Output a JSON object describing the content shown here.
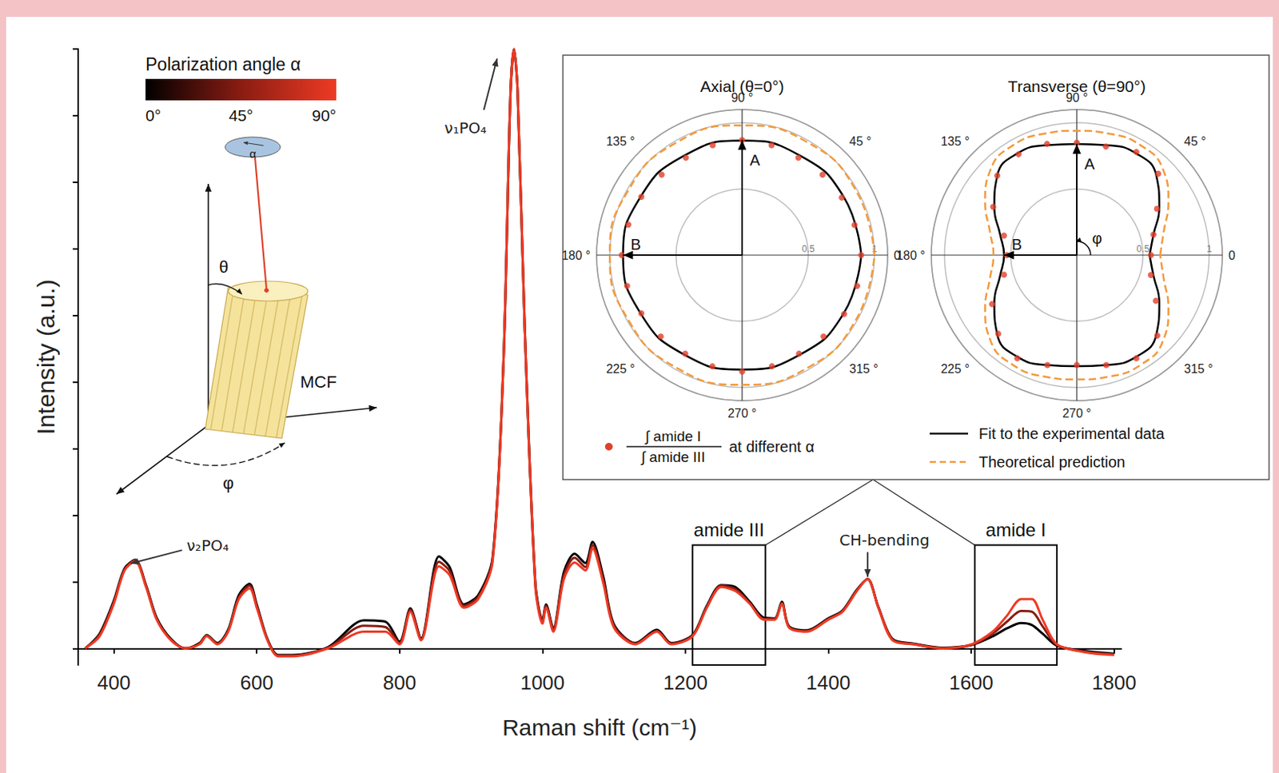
{
  "chart_data": {
    "type": "line",
    "xlabel": "Raman shift (cm⁻¹)",
    "ylabel": "Intensity (a.u.)",
    "xlim": [
      350,
      1810
    ],
    "xticks": [
      400,
      600,
      800,
      1000,
      1200,
      1400,
      1600,
      1800
    ],
    "ylim": [
      -0.25,
      9
    ],
    "yticks": [
      0,
      1,
      2,
      3,
      4,
      5,
      6,
      7,
      8,
      9
    ],
    "tick_labels": "x",
    "grid": false,
    "x": [
      360,
      380,
      400,
      415,
      430,
      445,
      460,
      480,
      500,
      520,
      530,
      545,
      560,
      575,
      590,
      600,
      615,
      630,
      650,
      700,
      750,
      780,
      800,
      815,
      830,
      855,
      870,
      890,
      910,
      930,
      945,
      955,
      960,
      965,
      975,
      990,
      1000,
      1005,
      1015,
      1030,
      1045,
      1060,
      1070,
      1085,
      1100,
      1130,
      1160,
      1180,
      1210,
      1230,
      1250,
      1270,
      1290,
      1310,
      1325,
      1335,
      1345,
      1370,
      1400,
      1420,
      1440,
      1455,
      1470,
      1490,
      1520,
      1560,
      1600,
      1630,
      1650,
      1670,
      1685,
      1700,
      1720,
      1760,
      1800
    ],
    "series": [
      {
        "alpha": 0,
        "values": [
          0,
          0.22,
          0.72,
          1.2,
          1.33,
          0.95,
          0.46,
          0.14,
          0,
          0.08,
          0.2,
          0.08,
          0.28,
          0.8,
          0.97,
          0.66,
          0.14,
          -0.1,
          -0.1,
          0.02,
          0.42,
          0.4,
          0.1,
          0.6,
          0.15,
          1.38,
          1.22,
          0.66,
          0.8,
          1.35,
          4.2,
          8.28,
          9.0,
          8.4,
          4.85,
          0.98,
          0.42,
          0.66,
          0.3,
          1.15,
          1.42,
          1.28,
          1.6,
          1.08,
          0.36,
          0.08,
          0.28,
          0.08,
          0.2,
          0.64,
          0.95,
          0.92,
          0.7,
          0.46,
          0.45,
          0.7,
          0.33,
          0.27,
          0.45,
          0.57,
          0.88,
          1.04,
          0.62,
          0.14,
          0.07,
          0.01,
          0.05,
          0.18,
          0.3,
          0.38,
          0.35,
          0.22,
          0.04,
          -0.04,
          -0.08
        ]
      },
      {
        "alpha": 45,
        "values": [
          0,
          0.2,
          0.7,
          1.18,
          1.32,
          0.94,
          0.44,
          0.13,
          0,
          0.07,
          0.19,
          0.07,
          0.26,
          0.77,
          0.94,
          0.64,
          0.13,
          -0.11,
          -0.11,
          0.01,
          0.34,
          0.32,
          0.08,
          0.58,
          0.14,
          1.3,
          1.16,
          0.64,
          0.77,
          1.32,
          4.2,
          8.28,
          9.0,
          8.4,
          4.85,
          0.95,
          0.4,
          0.64,
          0.28,
          1.1,
          1.36,
          1.22,
          1.55,
          1.03,
          0.34,
          0.07,
          0.26,
          0.07,
          0.19,
          0.62,
          0.94,
          0.89,
          0.68,
          0.44,
          0.44,
          0.68,
          0.32,
          0.26,
          0.44,
          0.56,
          0.87,
          1.04,
          0.62,
          0.13,
          0.06,
          0.0,
          0.05,
          0.22,
          0.4,
          0.56,
          0.55,
          0.33,
          0.05,
          -0.05,
          -0.09
        ]
      },
      {
        "alpha": 90,
        "values": [
          0,
          0.18,
          0.67,
          1.17,
          1.31,
          0.92,
          0.43,
          0.12,
          0,
          0.06,
          0.18,
          0.06,
          0.25,
          0.74,
          0.9,
          0.61,
          0.12,
          -0.12,
          -0.12,
          0,
          0.25,
          0.25,
          0.06,
          0.55,
          0.12,
          1.23,
          1.1,
          0.61,
          0.74,
          1.29,
          4.2,
          8.28,
          9.0,
          8.4,
          4.85,
          0.92,
          0.37,
          0.61,
          0.25,
          1.04,
          1.29,
          1.17,
          1.5,
          0.98,
          0.31,
          0.06,
          0.25,
          0.06,
          0.18,
          0.61,
          0.92,
          0.86,
          0.67,
          0.43,
          0.43,
          0.67,
          0.31,
          0.25,
          0.43,
          0.55,
          0.86,
          1.04,
          0.61,
          0.12,
          0.06,
          0,
          0.06,
          0.25,
          0.49,
          0.74,
          0.74,
          0.43,
          0.06,
          -0.06,
          -0.1
        ]
      }
    ],
    "colorbar": {
      "title": "Polarization angle α",
      "range": [
        0,
        90
      ],
      "ticks": [
        {
          "value": 0,
          "label": "0°"
        },
        {
          "value": 45,
          "label": "45°"
        },
        {
          "value": 90,
          "label": "90°"
        }
      ],
      "colors": [
        "#000000",
        "#8a1c12",
        "#ee3a24"
      ]
    },
    "annotations": [
      {
        "text": "ν₁PO₄",
        "x": 935,
        "y": 8.8
      },
      {
        "text": "ν₂PO₄",
        "x": 429,
        "y": 1.29
      },
      {
        "text": "CH-bending",
        "x": 1455,
        "y": 1.1
      }
    ],
    "regions": [
      {
        "label": "amide III",
        "x": [
          1210,
          1312
        ],
        "y": [
          -0.25,
          1.55
        ]
      },
      {
        "label": "amide I",
        "x": [
          1605,
          1720
        ],
        "y": [
          -0.25,
          1.55
        ]
      }
    ],
    "inset": {
      "type": "polar",
      "rlim": [
        0,
        1.1
      ],
      "rticks": [
        0.5,
        1
      ],
      "angle_ticks": [
        {
          "value": 0,
          "label": "0"
        },
        {
          "value": 45,
          "label": "45 °"
        },
        {
          "value": 90,
          "label": "90 °"
        },
        {
          "value": 135,
          "label": "135 °"
        },
        {
          "value": 180,
          "label": "180 °"
        },
        {
          "value": 225,
          "label": "225 °"
        },
        {
          "value": 270,
          "label": "270 °"
        },
        {
          "value": 315,
          "label": "315 °"
        }
      ],
      "series": [
        {
          "type": "scatter",
          "marker": "circle",
          "color": "#e0402a",
          "name": {
            "numerator": "∫ amide I",
            "denominator": "∫ amide III",
            "text": "at different α"
          }
        },
        {
          "type": "line",
          "line_style": "solid",
          "color": "#000000",
          "name": "Fit to the experimental data"
        },
        {
          "type": "line",
          "line_style": "dashed",
          "color": "#f39a3c",
          "name": "Theoretical prediction"
        }
      ],
      "panels": [
        {
          "title": "Axial (θ=0°)",
          "data": [
            {
              "angle": [
                0,
                15,
                30,
                45,
                60,
                75,
                90,
                105,
                120,
                135,
                150,
                165,
                180,
                195,
                210,
                225,
                240,
                255,
                270,
                285,
                300,
                315,
                330,
                345
              ],
              "r": [
                0.9,
                0.88,
                0.87,
                0.86,
                0.85,
                0.86,
                0.87,
                0.86,
                0.85,
                0.86,
                0.88,
                0.89,
                0.91,
                0.9,
                0.88,
                0.87,
                0.86,
                0.87,
                0.88,
                0.87,
                0.86,
                0.87,
                0.89,
                0.9
              ]
            },
            {
              "angle": [
                0,
                30,
                60,
                90,
                120,
                150,
                180,
                210,
                240,
                270,
                300,
                330,
                360
              ],
              "r": [
                0.9,
                0.885,
                0.87,
                0.865,
                0.87,
                0.885,
                0.9,
                0.885,
                0.87,
                0.865,
                0.87,
                0.885,
                0.9
              ]
            },
            {
              "angle": [
                0,
                30,
                60,
                90,
                120,
                150,
                180,
                210,
                240,
                270,
                300,
                330,
                360
              ],
              "r": [
                1.0,
                0.99,
                0.985,
                0.98,
                0.985,
                0.99,
                1.0,
                0.99,
                0.985,
                0.98,
                0.985,
                0.99,
                1.0
              ]
            }
          ],
          "arrows": [
            {
              "label": "A",
              "angle": 90,
              "r": 0.87
            },
            {
              "label": "B",
              "angle": 180,
              "r": 0.9
            }
          ]
        },
        {
          "title": "Transverse (θ=90°)",
          "data": [
            {
              "angle": [
                0,
                15,
                30,
                45,
                60,
                75,
                90,
                105,
                120,
                135,
                150,
                165,
                180,
                195,
                210,
                225,
                240,
                255,
                270,
                285,
                300,
                315,
                330,
                345
              ],
              "r": [
                0.56,
                0.6,
                0.7,
                0.87,
                0.9,
                0.85,
                0.85,
                0.87,
                0.88,
                0.85,
                0.73,
                0.57,
                0.53,
                0.57,
                0.74,
                0.84,
                0.9,
                0.86,
                0.83,
                0.86,
                0.9,
                0.86,
                0.69,
                0.58
              ]
            },
            {
              "angle": [
                0,
                15,
                30,
                45,
                60,
                75,
                90,
                105,
                120,
                135,
                150,
                165,
                180,
                195,
                210,
                225,
                240,
                255,
                270,
                285,
                300,
                315,
                330,
                345,
                360
              ],
              "r": [
                0.55,
                0.6,
                0.72,
                0.85,
                0.89,
                0.86,
                0.84,
                0.86,
                0.89,
                0.85,
                0.72,
                0.6,
                0.55,
                0.6,
                0.72,
                0.85,
                0.89,
                0.86,
                0.84,
                0.86,
                0.89,
                0.85,
                0.72,
                0.6,
                0.55
              ]
            },
            {
              "angle": [
                0,
                15,
                30,
                45,
                60,
                75,
                90,
                105,
                120,
                135,
                150,
                165,
                180,
                195,
                210,
                225,
                240,
                255,
                270,
                285,
                300,
                315,
                330,
                345,
                360
              ],
              "r": [
                0.63,
                0.68,
                0.8,
                0.92,
                0.96,
                0.95,
                0.94,
                0.95,
                0.96,
                0.92,
                0.8,
                0.68,
                0.63,
                0.68,
                0.8,
                0.92,
                0.96,
                0.95,
                0.94,
                0.95,
                0.96,
                0.92,
                0.8,
                0.68,
                0.63
              ]
            }
          ],
          "arrows": [
            {
              "label": "A",
              "angle": 90,
              "r": 0.84
            },
            {
              "label": "B",
              "angle": 180,
              "r": 0.55
            }
          ],
          "angle_marker": "φ"
        }
      ]
    },
    "diagram": {
      "labels": {
        "alpha": "α",
        "theta": "θ",
        "phi": "φ",
        "fiber": "MCF"
      }
    }
  }
}
